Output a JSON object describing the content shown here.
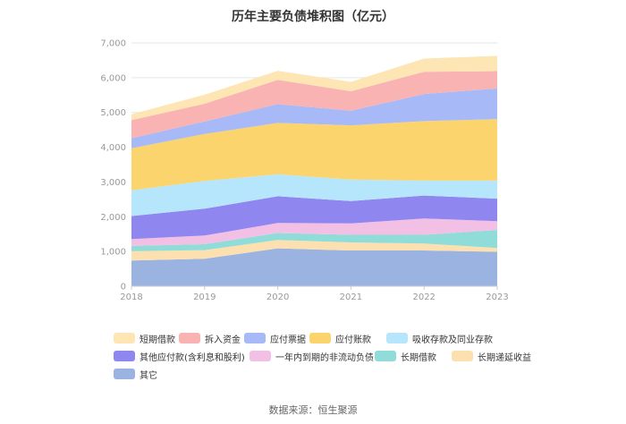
{
  "chart_data": {
    "type": "area",
    "stacked": true,
    "title": "历年主要负债堆积图（亿元）",
    "source": "数据来源：恒生聚源",
    "categories": [
      "2018",
      "2019",
      "2020",
      "2021",
      "2022",
      "2023"
    ],
    "ylim": [
      0,
      7000
    ],
    "yticks": [
      "0",
      "1,000",
      "2,000",
      "3,000",
      "4,000",
      "5,000",
      "6,000",
      "7,000"
    ],
    "grid": true,
    "series": [
      {
        "name": "其它",
        "color": "#9bb3e0",
        "values": [
          740,
          790,
          1090,
          1030,
          1030,
          990
        ]
      },
      {
        "name": "长期递延收益",
        "color": "#fde0b0",
        "values": [
          270,
          250,
          240,
          230,
          200,
          110
        ]
      },
      {
        "name": "长期借款",
        "color": "#8fdcd8",
        "values": [
          150,
          170,
          200,
          220,
          250,
          520
        ]
      },
      {
        "name": "一年内到期的非流动负债",
        "color": "#f2c0e4",
        "values": [
          200,
          250,
          290,
          330,
          470,
          250
        ]
      },
      {
        "name": "其他应付款(含利息和股利)",
        "color": "#8f86f0",
        "values": [
          660,
          770,
          770,
          640,
          660,
          650
        ]
      },
      {
        "name": "吸收存款及同业存款",
        "color": "#b6e6fb",
        "values": [
          740,
          800,
          630,
          620,
          430,
          520
        ]
      },
      {
        "name": "应付账款",
        "color": "#fcd46e",
        "values": [
          1210,
          1350,
          1480,
          1560,
          1710,
          1770
        ]
      },
      {
        "name": "应付票据",
        "color": "#a7b9f7",
        "values": [
          290,
          360,
          540,
          420,
          780,
          880
        ]
      },
      {
        "name": "拆入资金",
        "color": "#f9b3b3",
        "values": [
          520,
          510,
          700,
          560,
          640,
          500
        ]
      },
      {
        "name": "短期借款",
        "color": "#fde6b4",
        "values": [
          170,
          260,
          260,
          270,
          380,
          440
        ]
      }
    ]
  },
  "legend_rows": [
    [
      "短期借款",
      "拆入资金",
      "应付票据",
      "应付账款",
      "吸收存款及同业存款"
    ],
    [
      "其他应付款(含利息和股利)",
      "一年内到期的非流动负债",
      "长期借款",
      "长期递延收益"
    ],
    [
      "其它"
    ]
  ]
}
